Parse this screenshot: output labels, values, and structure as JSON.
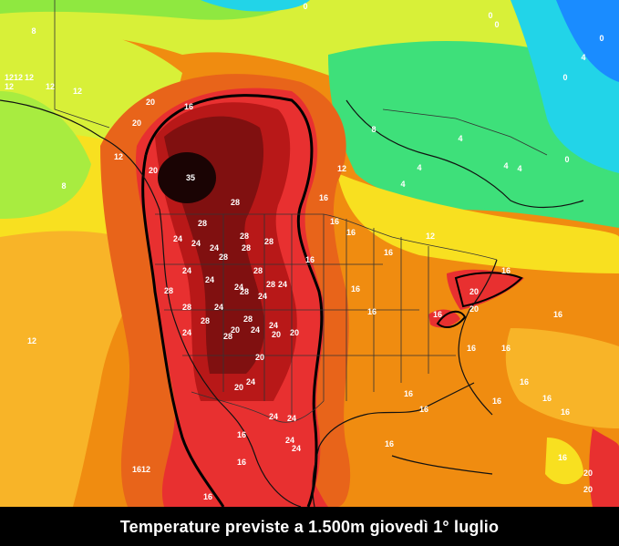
{
  "caption": "Temperature previste a 1.500m giovedì 1° luglio",
  "palette": {
    "deep_cold": "#1a8cff",
    "cold": "#22d4e8",
    "cool": "#3ee07a",
    "mild_green": "#8fe840",
    "yellow_green": "#d8f038",
    "yellow": "#f8e020",
    "light_orange": "#f8b428",
    "orange": "#f08c10",
    "dark_orange": "#e8641a",
    "red": "#e83030",
    "dark_red": "#b81818",
    "maroon": "#801010",
    "black_core": "#1a0404"
  },
  "labels": [
    {
      "text": "35",
      "color": "#ffffff"
    },
    {
      "text": "28",
      "color": "#ffffff"
    },
    {
      "text": "24",
      "color": "#ffffff"
    },
    {
      "text": "20",
      "color": "#ffffff"
    },
    {
      "text": "16",
      "color": "#ffffff"
    },
    {
      "text": "12",
      "color": "#ffffff"
    },
    {
      "text": "8",
      "color": "#ffffff"
    },
    {
      "text": "4",
      "color": "#ffffff"
    },
    {
      "text": "0",
      "color": "#ffffff"
    }
  ]
}
